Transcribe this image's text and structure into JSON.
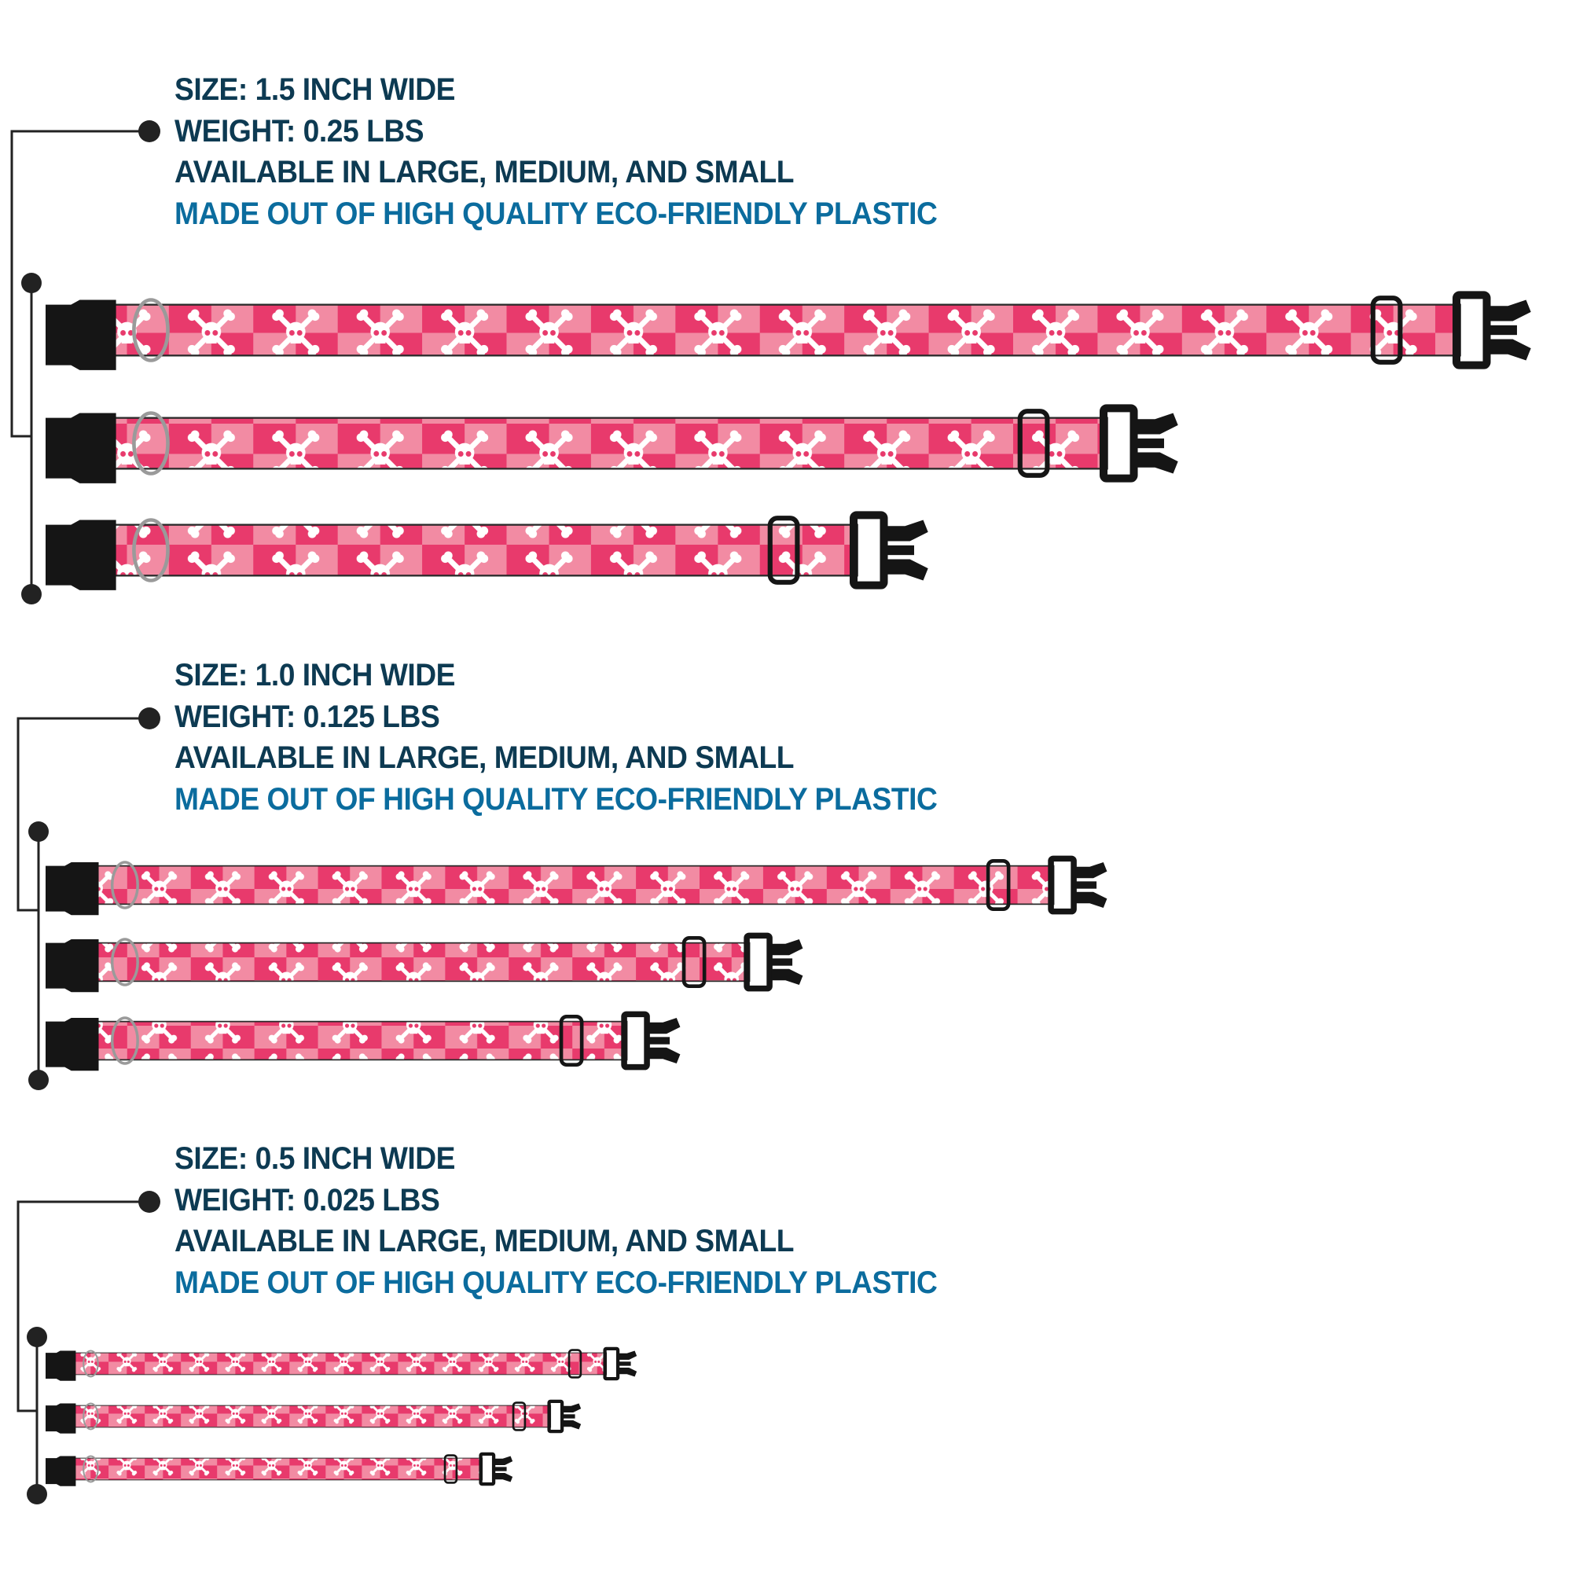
{
  "colors": {
    "text": "#0d3a52",
    "highlight": "#0b6c9e",
    "strap_dark": "#e83a6c",
    "strap_light": "#f28ba3",
    "hardware": "#151515"
  },
  "groups": [
    {
      "size": "SIZE: 1.5 INCH WIDE",
      "weight": "WEIGHT: 0.25 LBS",
      "availability": "AVAILABLE IN LARGE, MEDIUM, AND SMALL",
      "material": "MADE OUT OF HIGH QUALITY ECO-FRIENDLY PLASTIC",
      "collars": [
        "large",
        "medium",
        "small"
      ]
    },
    {
      "size": "SIZE: 1.0 INCH WIDE",
      "weight": "WEIGHT: 0.125 LBS",
      "availability": "AVAILABLE IN LARGE, MEDIUM, AND SMALL",
      "material": "MADE OUT OF HIGH QUALITY ECO-FRIENDLY PLASTIC",
      "collars": [
        "large",
        "medium",
        "small"
      ]
    },
    {
      "size": "SIZE: 0.5 INCH WIDE",
      "weight": "WEIGHT: 0.025 LBS",
      "availability": "AVAILABLE IN LARGE, MEDIUM, AND SMALL",
      "material": "MADE OUT OF HIGH QUALITY ECO-FRIENDLY PLASTIC",
      "collars": [
        "large",
        "medium",
        "small"
      ]
    }
  ],
  "pattern_icon": "skull-and-crossbones-icon"
}
